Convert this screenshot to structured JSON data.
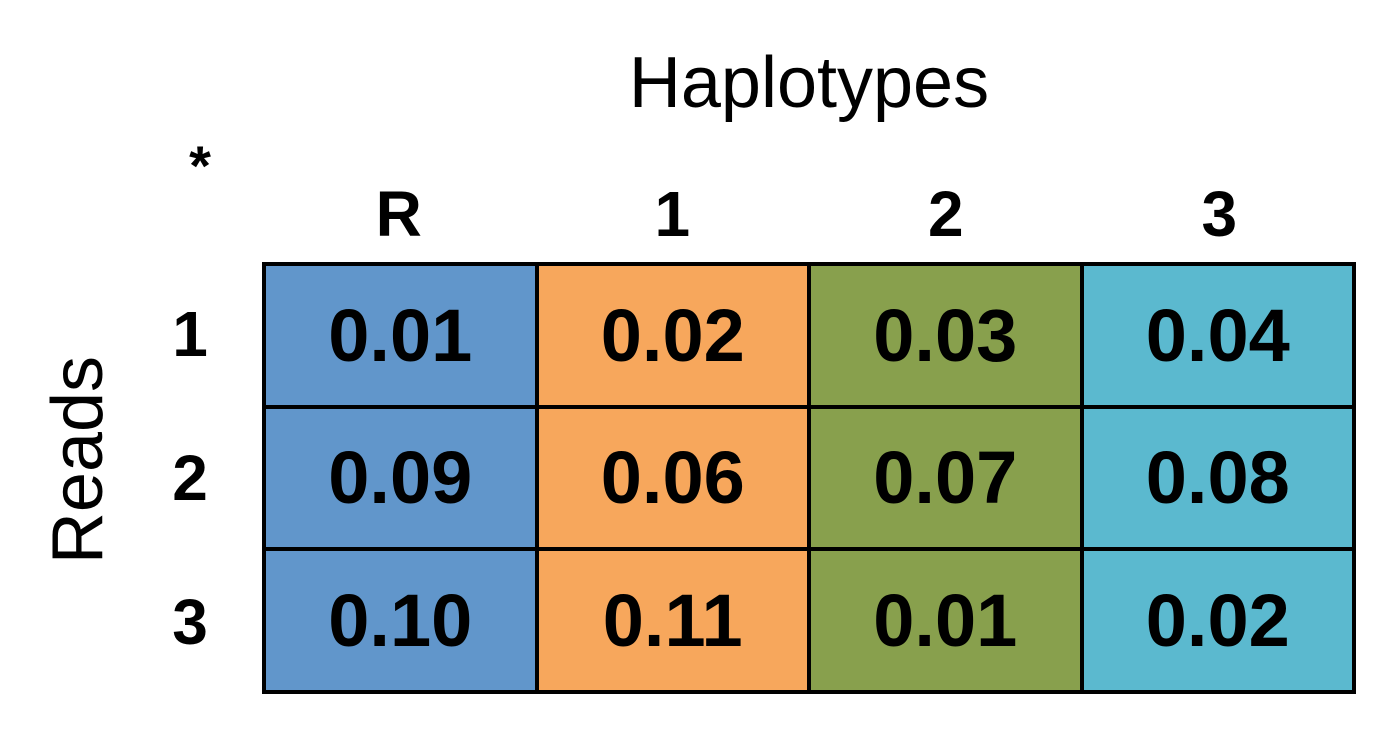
{
  "title": "Haplotypes",
  "row_axis_label": "Reads",
  "corner_mark": "*",
  "columns": [
    {
      "label": "R",
      "color": "#6196CB"
    },
    {
      "label": "1",
      "color": "#F7A75C"
    },
    {
      "label": "2",
      "color": "#88A04D"
    },
    {
      "label": "3",
      "color": "#5BB9CF"
    }
  ],
  "rows": [
    {
      "label": "1",
      "values": [
        "0.01",
        "0.02",
        "0.03",
        "0.04"
      ]
    },
    {
      "label": "2",
      "values": [
        "0.09",
        "0.06",
        "0.07",
        "0.08"
      ]
    },
    {
      "label": "3",
      "values": [
        "0.10",
        "0.11",
        "0.01",
        "0.02"
      ]
    }
  ]
}
